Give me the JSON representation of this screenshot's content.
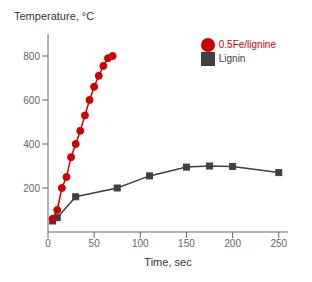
{
  "chart_data": {
    "type": "line",
    "x_label": "Time, sec",
    "y_label": "Temperature, °C",
    "series": [
      {
        "name": "Lignin",
        "color": "#404040",
        "marker": "square",
        "x": [
          5,
          10,
          30,
          75,
          110,
          150,
          175,
          200,
          250
        ],
        "values": [
          50,
          65,
          160,
          200,
          255,
          295,
          300,
          298,
          270
        ]
      },
      {
        "name": "0.5Fe/lignine",
        "color": "#cc0000",
        "marker": "circle",
        "x": [
          5,
          10,
          15,
          20,
          25,
          30,
          35,
          40,
          45,
          50,
          55,
          60,
          65,
          70
        ],
        "values": [
          60,
          100,
          200,
          250,
          340,
          400,
          460,
          530,
          600,
          660,
          710,
          755,
          790,
          800
        ]
      }
    ],
    "xlim": [
      0,
      260
    ],
    "ylim": [
      0,
      900
    ],
    "xticks": [
      0,
      50,
      100,
      150,
      200,
      250
    ],
    "yticks": [
      200,
      400,
      600,
      800
    ],
    "legend": "upper right"
  }
}
